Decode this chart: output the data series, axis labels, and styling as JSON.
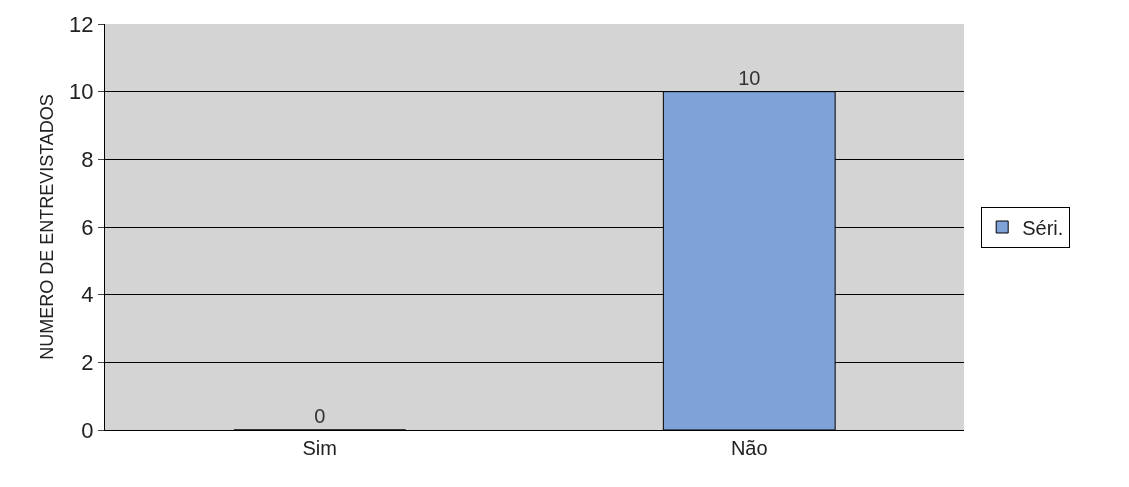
{
  "chart_data": {
    "type": "bar",
    "ylabel": "NUMERO DE ENTREVISTADOS",
    "categories": [
      "Sim",
      "Não"
    ],
    "series": [
      {
        "name": "Séri.",
        "color": "#7fa3d8",
        "values": [
          0,
          10
        ]
      }
    ],
    "ylim": [
      0,
      12
    ],
    "yticks": [
      0,
      2,
      4,
      6,
      8,
      10,
      12
    ],
    "grid": "y",
    "legend": "right",
    "data_labels": true
  }
}
